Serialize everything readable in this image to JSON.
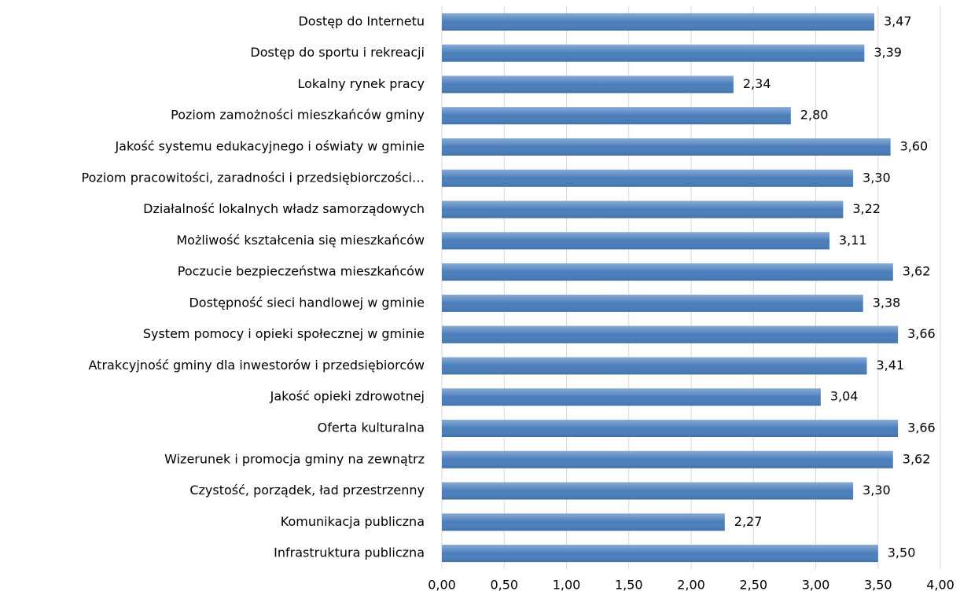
{
  "chart_data": {
    "type": "barh",
    "categories": [
      "Dostęp do Internetu",
      "Dostęp do sportu i rekreacji",
      "Lokalny rynek pracy",
      "Poziom zamożności mieszkańców gminy",
      "Jakość systemu  edukacyjnego i oświaty w gminie",
      "Poziom pracowitości, zaradności i przedsiębiorczości…",
      "Działalność lokalnych władz samorządowych",
      "Możliwość kształcenia się mieszkańców",
      "Poczucie bezpieczeństwa mieszkańców",
      "Dostępność sieci  handlowej w gminie",
      "System pomocy i opieki społecznej w gminie",
      "Atrakcyjność gminy dla inwestorów i przedsiębiorców",
      "Jakość opieki zdrowotnej",
      "Oferta kulturalna",
      "Wizerunek i promocja gminy na zewnątrz",
      "Czystość, porządek, ład przestrzenny",
      "Komunikacja publiczna",
      "Infrastruktura publiczna"
    ],
    "values": [
      3.47,
      3.39,
      2.34,
      2.8,
      3.6,
      3.3,
      3.22,
      3.11,
      3.62,
      3.38,
      3.66,
      3.41,
      3.04,
      3.66,
      3.62,
      3.3,
      2.27,
      3.5
    ],
    "value_labels": [
      "3,47",
      "3,39",
      "2,34",
      "2,80",
      "3,60",
      "3,30",
      "3,22",
      "3,11",
      "3,62",
      "3,38",
      "3,66",
      "3,41",
      "3,04",
      "3,66",
      "3,62",
      "3,30",
      "2,27",
      "3,50"
    ],
    "color": "#4a7ebb",
    "xlim": [
      0,
      4
    ],
    "xticks": [
      {
        "value": 0,
        "label": "0,00"
      },
      {
        "value": 0.5,
        "label": "0,50"
      },
      {
        "value": 1,
        "label": "1,00"
      },
      {
        "value": 1.5,
        "label": "1,50"
      },
      {
        "value": 2,
        "label": "2,00"
      },
      {
        "value": 2.5,
        "label": "2,50"
      },
      {
        "value": 3,
        "label": "3,00"
      },
      {
        "value": 3.5,
        "label": "3,50"
      },
      {
        "value": 4,
        "label": "4,00"
      }
    ],
    "grid": true
  }
}
